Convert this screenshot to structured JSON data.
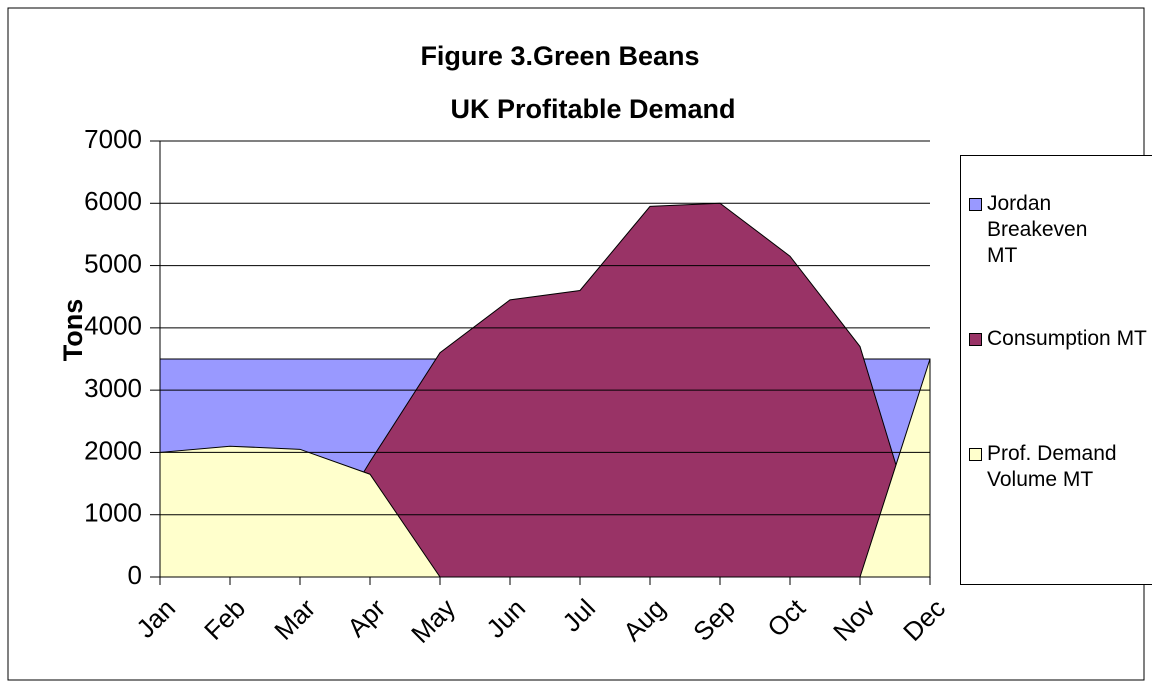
{
  "chart_data": {
    "type": "area",
    "title": "Figure 3.Green Beans",
    "subtitle": "UK Profitable Demand",
    "ylabel": "Tons",
    "categories": [
      "Jan",
      "Feb",
      "Mar",
      "Apr",
      "May",
      "Jun",
      "Jul",
      "Aug",
      "Sep",
      "Oct",
      "Nov",
      "Dec"
    ],
    "series": [
      {
        "name": "Jordan Breakeven MT",
        "color": "#9999ff",
        "values": [
          3500,
          3500,
          3500,
          3500,
          3500,
          3500,
          3500,
          3500,
          3500,
          3500,
          3500,
          3500
        ]
      },
      {
        "name": "Consumption MT",
        "color": "#993366",
        "values": [
          0,
          0,
          0,
          1850,
          3600,
          4450,
          4600,
          5950,
          6000,
          5150,
          3700,
          0
        ]
      },
      {
        "name": "Prof. Demand Volume MT",
        "color": "#ffffcc",
        "values": [
          2000,
          2100,
          2050,
          1650,
          0,
          0,
          0,
          0,
          0,
          0,
          0,
          3500
        ]
      }
    ],
    "ylim": [
      0,
      7000
    ],
    "yticks": [
      0,
      1000,
      2000,
      3000,
      4000,
      5000,
      6000,
      7000
    ],
    "grid": true,
    "legend": "right"
  }
}
